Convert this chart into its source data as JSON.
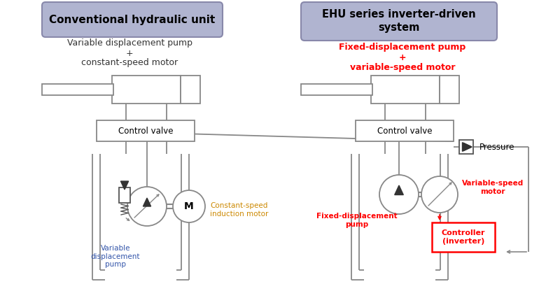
{
  "bg_color": "#ffffff",
  "title_left": "Conventional hydraulic unit",
  "title_right": "EHU series inverter-driven\nsystem",
  "title_bg": "#b0b4d0",
  "title_border": "#8888aa",
  "title_text_color": "#000000",
  "subtitle_left": [
    "Variable displacement pump",
    "+",
    "constant-speed motor"
  ],
  "subtitle_left_color": "#333333",
  "subtitle_right": [
    "Fixed-displacement pump",
    "+",
    "variable-speed motor"
  ],
  "subtitle_right_color": "#ff0000",
  "label_var_disp_pump": "Variable\ndisplacement\npump",
  "label_var_disp_pump_color": "#3355aa",
  "label_const_speed_motor": "Constant-speed\ninduction motor",
  "label_const_speed_motor_color": "#cc8800",
  "label_control_valve": "Control valve",
  "label_fixed_disp_pump": "Fixed-displacement\npump",
  "label_fixed_disp_pump_color": "#ff0000",
  "label_variable_speed_motor": "Variable-speed\nmotor",
  "label_variable_speed_motor_color": "#ff0000",
  "label_controller": "Controller\n(inverter)",
  "label_controller_color": "#ff0000",
  "label_pressure": "Pressure",
  "line_color": "#888888",
  "line_color_dark": "#555555"
}
